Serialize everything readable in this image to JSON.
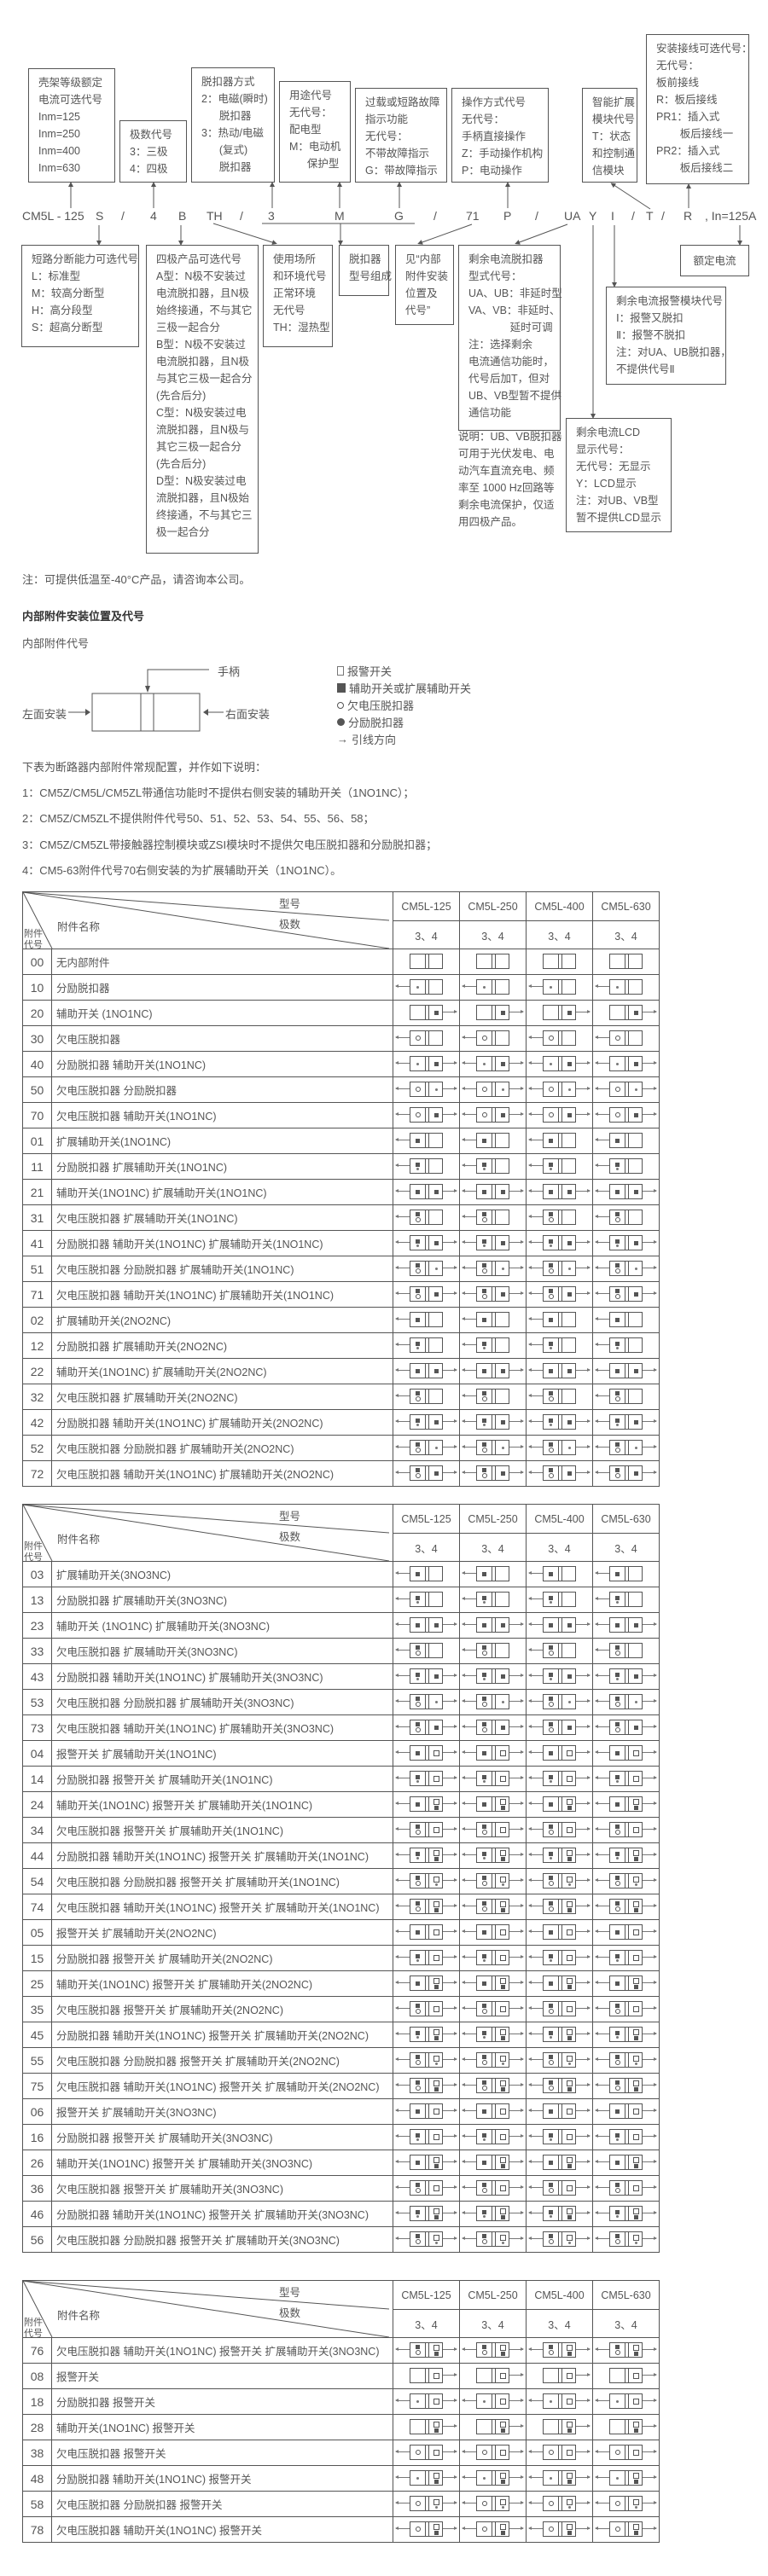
{
  "model_code": {
    "tokens": [
      "CM5L - 125",
      "S",
      "/",
      "4",
      "B",
      "TH",
      "/",
      "3",
      "M",
      "G",
      "/",
      "71",
      "P",
      "/",
      "UA",
      "Y",
      "I",
      "/",
      "T",
      "/",
      "R",
      ", In=125A"
    ],
    "top_boxes": [
      {
        "id": "frame-current",
        "lines": [
          "壳架等级额定",
          "电流可选代号",
          "Inm=125",
          "Inm=250",
          "Inm=400",
          "Inm=630"
        ]
      },
      {
        "id": "poles",
        "lines": [
          "极数代号",
          "3：三极",
          "4：四极"
        ]
      },
      {
        "id": "release-type",
        "lines": [
          "脱扣器方式",
          "2：电磁(瞬时)",
          "      脱扣器",
          "3：热动/电磁",
          "      (复式)",
          "      脱扣器"
        ]
      },
      {
        "id": "usage",
        "lines": [
          "用途代号",
          "无代号：",
          "配电型",
          "M：电动机",
          "      保护型"
        ]
      },
      {
        "id": "fault-indication",
        "lines": [
          "过载或短路故障",
          "指示功能",
          "无代号：",
          "不带故障指示",
          "G：带故障指示"
        ]
      },
      {
        "id": "operation",
        "lines": [
          "操作方式代号",
          "无代号：",
          "手柄直接操作",
          "Z：手动操作机构",
          "P：电动操作"
        ]
      },
      {
        "id": "smart-module",
        "lines": [
          "智能扩展",
          "模块代号",
          "T：状态",
          "和控制通",
          "信模块"
        ]
      },
      {
        "id": "wiring",
        "lines": [
          "安装接线可选代号：",
          "无代号：",
          "板前接线",
          "R：板后接线",
          "PR1：插入式",
          "        板后接线一",
          "PR2：插入式",
          "        板后接线二"
        ]
      }
    ],
    "bottom_boxes": [
      {
        "id": "breaking-capacity",
        "lines": [
          "短路分断能力可选代号",
          "L：标准型",
          "M：较高分断型",
          "H：高分段型",
          "S：超高分断型"
        ]
      },
      {
        "id": "four-pole",
        "lines": [
          "四极产品可选代号",
          "A型：N极不安装过",
          "电流脱扣器，且N极",
          "始终接通，不与其它",
          "三极一起合分",
          "B型：N极不安装过",
          "电流脱扣器，且N极",
          "与其它三极一起合分",
          "(先合后分)",
          "C型：N极安装过电",
          "流脱扣器，且N极与",
          "其它三极一起合分",
          "(先合后分)",
          "D型：N极安装过电",
          "流脱扣器，且N极始",
          "终接通，不与其它三",
          "极一起合分"
        ]
      },
      {
        "id": "environment",
        "lines": [
          "使用场所",
          "和环境代号",
          "正常环境",
          "无代号",
          "TH：湿热型"
        ]
      },
      {
        "id": "release-model",
        "lines": [
          "脱扣器",
          "型号组成"
        ]
      },
      {
        "id": "accessory-ref",
        "lines": [
          "见“内部",
          "附件安装",
          "位置及",
          "代号”"
        ]
      },
      {
        "id": "rcd-type",
        "lines": [
          "剩余电流脱扣器",
          "型式代号：",
          "UA、UB：非延时型",
          "VA、VB：非延时、",
          "              延时可调",
          "注：选择剩余",
          "电流通信功能时，",
          "代号后加T，但对",
          "UB、VB型暂不提供",
          "通信功能"
        ]
      },
      {
        "id": "rcd-lcd",
        "lines": [
          "剩余电流LCD",
          "显示代号：",
          "无代号：无显示",
          "Y：LCD显示",
          "注：对UB、VB型",
          "暂不提供LCD显示"
        ]
      },
      {
        "id": "rcd-alarm",
        "lines": [
          "剩余电流报警模块代号",
          "Ⅰ：报警又脱扣",
          "Ⅱ：报警不脱扣",
          "注：对UA、UB脱扣器，",
          "不提供代号Ⅱ"
        ]
      },
      {
        "id": "rated-current",
        "lines": [
          "额定电流"
        ]
      }
    ],
    "explanation": [
      "说明：UB、VB脱扣器",
      "可用于光伏发电、电",
      "动汽车直流充电、频",
      "率至 1000 Hz回路等",
      "剩余电流保护，仅适",
      "用四极产品。"
    ]
  },
  "low_temp_note": "注：可提供低温至-40°C产品，请咨询本公司。",
  "section_title": "内部附件安装位置及代号",
  "subsection_title": "内部附件代号",
  "install_diagram": {
    "handle": "手柄",
    "left": "左面安装",
    "right": "右面安装"
  },
  "legend": [
    {
      "icon": "alarm-switch",
      "label": "报警开关"
    },
    {
      "icon": "auxiliary-switch",
      "label": "辅助开关或扩展辅助开关"
    },
    {
      "icon": "undervoltage-release",
      "label": "欠电压脱扣器"
    },
    {
      "icon": "shunt-release",
      "label": "分励脱扣器"
    },
    {
      "icon": "lead-direction",
      "label": "引线方向"
    }
  ],
  "intro": "下表为断路器内部附件常规配置，并作如下说明：",
  "notes": [
    "1：CM5Z/CM5L/CM5ZL带通信功能时不提供右侧安装的辅助开关（1NO1NC）；",
    "2：CM5Z/CM5ZL不提供附件代号50、51、52、53、54、55、56、58；",
    "3：CM5Z/CM5ZL带接触器控制模块或ZSI模块时不提供欠电压脱扣器和分励脱扣器；",
    "4：CM5-63附件代号70右侧安装的为扩展辅助开关（1NO1NC）。"
  ],
  "table_header": {
    "model_label": "型号",
    "poles_label": "极数",
    "name_label": "附件名称",
    "code_label_1": "附件",
    "code_label_2": "代号",
    "models": [
      "CM5L-125",
      "CM5L-250",
      "CM5L-400",
      "CM5L-630"
    ],
    "poles": [
      "3、4",
      "3、4",
      "3、4",
      "3、4"
    ]
  },
  "tables": [
    {
      "rows": [
        {
          "code": "00",
          "name": "无内部附件"
        },
        {
          "code": "10",
          "name": "分励脱扣器"
        },
        {
          "code": "20",
          "name": "辅助开关 (1NO1NC)"
        },
        {
          "code": "30",
          "name": "欠电压脱扣器"
        },
        {
          "code": "40",
          "name": "分励脱扣器 辅助开关(1NO1NC)"
        },
        {
          "code": "50",
          "name": "欠电压脱扣器 分励脱扣器"
        },
        {
          "code": "70",
          "name": "欠电压脱扣器 辅助开关(1NO1NC)"
        },
        {
          "code": "01",
          "name": "扩展辅助开关(1NO1NC)"
        },
        {
          "code": "11",
          "name": "分励脱扣器 扩展辅助开关(1NO1NC)"
        },
        {
          "code": "21",
          "name": "辅助开关(1NO1NC) 扩展辅助开关(1NO1NC)"
        },
        {
          "code": "31",
          "name": "欠电压脱扣器 扩展辅助开关(1NO1NC)"
        },
        {
          "code": "41",
          "name": "分励脱扣器 辅助开关(1NO1NC) 扩展辅助开关(1NO1NC)"
        },
        {
          "code": "51",
          "name": "欠电压脱扣器 分励脱扣器 扩展辅助开关(1NO1NC)"
        },
        {
          "code": "71",
          "name": "欠电压脱扣器 辅助开关(1NO1NC) 扩展辅助开关(1NO1NC)"
        },
        {
          "code": "02",
          "name": "扩展辅助开关(2NO2NC)"
        },
        {
          "code": "12",
          "name": "分励脱扣器 扩展辅助开关(2NO2NC)"
        },
        {
          "code": "22",
          "name": "辅助开关(1NO1NC) 扩展辅助开关(2NO2NC)"
        },
        {
          "code": "32",
          "name": "欠电压脱扣器 扩展辅助开关(2NO2NC)"
        },
        {
          "code": "42",
          "name": "分励脱扣器 辅助开关(1NO1NC) 扩展辅助开关(2NO2NC)"
        },
        {
          "code": "52",
          "name": "欠电压脱扣器 分励脱扣器 扩展辅助开关(2NO2NC)"
        },
        {
          "code": "72",
          "name": "欠电压脱扣器 辅助开关(1NO1NC) 扩展辅助开关(2NO2NC)"
        }
      ]
    },
    {
      "rows": [
        {
          "code": "03",
          "name": "扩展辅助开关(3NO3NC)"
        },
        {
          "code": "13",
          "name": "分励脱扣器 扩展辅助开关(3NO3NC)"
        },
        {
          "code": "23",
          "name": "辅助开关 (1NO1NC) 扩展辅助开关(3NO3NC)"
        },
        {
          "code": "33",
          "name": "欠电压脱扣器 扩展辅助开关(3NO3NC)"
        },
        {
          "code": "43",
          "name": "分励脱扣器 辅助开关(1NO1NC) 扩展辅助开关(3NO3NC)"
        },
        {
          "code": "53",
          "name": "欠电压脱扣器 分励脱扣器 扩展辅助开关(3NO3NC)"
        },
        {
          "code": "73",
          "name": "欠电压脱扣器 辅助开关(1NO1NC) 扩展辅助开关(3NO3NC)"
        },
        {
          "code": "04",
          "name": "报警开关 扩展辅助开关(1NO1NC)"
        },
        {
          "code": "14",
          "name": "分励脱扣器 报警开关 扩展辅助开关(1NO1NC)"
        },
        {
          "code": "24",
          "name": "辅助开关(1NO1NC) 报警开关 扩展辅助开关(1NO1NC)"
        },
        {
          "code": "34",
          "name": "欠电压脱扣器 报警开关 扩展辅助开关(1NO1NC)"
        },
        {
          "code": "44",
          "name": "分励脱扣器 辅助开关(1NO1NC) 报警开关 扩展辅助开关(1NO1NC)"
        },
        {
          "code": "54",
          "name": "欠电压脱扣器 分励脱扣器 报警开关 扩展辅助开关(1NO1NC)"
        },
        {
          "code": "74",
          "name": "欠电压脱扣器 辅助开关(1NO1NC) 报警开关 扩展辅助开关(1NO1NC)"
        },
        {
          "code": "05",
          "name": "报警开关 扩展辅助开关(2NO2NC)"
        },
        {
          "code": "15",
          "name": "分励脱扣器 报警开关 扩展辅助开关(2NO2NC)"
        },
        {
          "code": "25",
          "name": "辅助开关(1NO1NC) 报警开关 扩展辅助开关(2NO2NC)"
        },
        {
          "code": "35",
          "name": "欠电压脱扣器 报警开关 扩展辅助开关(2NO2NC)"
        },
        {
          "code": "45",
          "name": "分励脱扣器 辅助开关(1NO1NC) 报警开关 扩展辅助开关(2NO2NC)"
        },
        {
          "code": "55",
          "name": "欠电压脱扣器 分励脱扣器 报警开关 扩展辅助开关(2NO2NC)"
        },
        {
          "code": "75",
          "name": "欠电压脱扣器 辅助开关(1NO1NC) 报警开关 扩展辅助开关(2NO2NC)"
        },
        {
          "code": "06",
          "name": "报警开关 扩展辅助开关(3NO3NC)"
        },
        {
          "code": "16",
          "name": "分励脱扣器 报警开关 扩展辅助开关(3NO3NC)"
        },
        {
          "code": "26",
          "name": "辅助开关(1NO1NC) 报警开关 扩展辅助开关(3NO3NC)"
        },
        {
          "code": "36",
          "name": "欠电压脱扣器 报警开关 扩展辅助开关(3NO3NC)"
        },
        {
          "code": "46",
          "name": "分励脱扣器 辅助开关(1NO1NC) 报警开关 扩展辅助开关(3NO3NC)"
        },
        {
          "code": "56",
          "name": "欠电压脱扣器 分励脱扣器 报警开关 扩展辅助开关(3NO3NC)"
        }
      ]
    },
    {
      "rows": [
        {
          "code": "76",
          "name": "欠电压脱扣器 辅助开关(1NO1NC) 报警开关 扩展辅助开关(3NO3NC)"
        },
        {
          "code": "08",
          "name": "报警开关"
        },
        {
          "code": "18",
          "name": "分励脱扣器 报警开关"
        },
        {
          "code": "28",
          "name": "辅助开关(1NO1NC) 报警开关"
        },
        {
          "code": "38",
          "name": "欠电压脱扣器 报警开关"
        },
        {
          "code": "48",
          "name": "分励脱扣器 辅助开关(1NO1NC) 报警开关"
        },
        {
          "code": "58",
          "name": "欠电压脱扣器 分励脱扣器 报警开关"
        },
        {
          "code": "78",
          "name": "欠电压脱扣器 辅助开关(1NO1NC) 报警开关"
        }
      ]
    }
  ]
}
